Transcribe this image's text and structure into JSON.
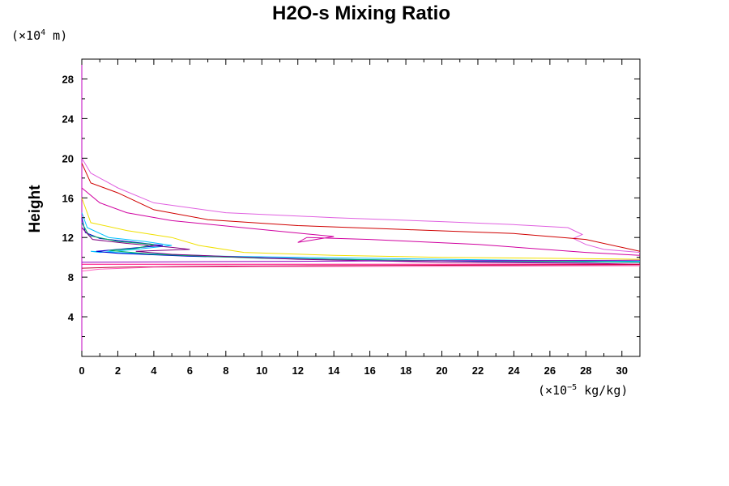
{
  "chart_data": {
    "type": "line",
    "title": "H2O-s Mixing Ratio",
    "ylabel": "Height",
    "xlabel": "",
    "y_unit": {
      "prefix": "(×10",
      "exp": "4",
      "suffix": " m)"
    },
    "x_unit": {
      "prefix": "(×10",
      "exp": "−5",
      "suffix": " kg/kg)"
    },
    "xlim": [
      0,
      31
    ],
    "ylim": [
      0,
      30
    ],
    "x_ticks": [
      0,
      2,
      4,
      6,
      8,
      10,
      12,
      14,
      16,
      18,
      20,
      22,
      24,
      26,
      28,
      30
    ],
    "y_ticks": [
      4,
      8,
      12,
      16,
      20,
      24,
      28
    ],
    "grid": false,
    "series": [
      {
        "color": "#e060e0",
        "points": [
          [
            0,
            20
          ],
          [
            0.5,
            18.5
          ],
          [
            2,
            17
          ],
          [
            4,
            15.5
          ],
          [
            8,
            14.5
          ],
          [
            14,
            14
          ],
          [
            20,
            13.6
          ],
          [
            24,
            13.3
          ],
          [
            27,
            13
          ],
          [
            27.8,
            12.3
          ],
          [
            27.3,
            11.9
          ],
          [
            28,
            11.3
          ],
          [
            29,
            10.8
          ],
          [
            31,
            10.5
          ]
        ]
      },
      {
        "color": "#d00000",
        "points": [
          [
            0,
            19.5
          ],
          [
            0.5,
            17.5
          ],
          [
            2,
            16.5
          ],
          [
            4,
            14.8
          ],
          [
            7,
            13.8
          ],
          [
            12,
            13.2
          ],
          [
            18,
            12.8
          ],
          [
            24,
            12.4
          ],
          [
            28,
            11.8
          ],
          [
            30,
            11
          ],
          [
            31,
            10.6
          ]
        ]
      },
      {
        "color": "#d000a0",
        "points": [
          [
            0,
            17
          ],
          [
            1,
            15.5
          ],
          [
            2.5,
            14.5
          ],
          [
            5,
            13.7
          ],
          [
            10,
            12.8
          ],
          [
            14,
            12.1
          ],
          [
            12,
            11.5
          ],
          [
            12.5,
            12
          ],
          [
            16,
            11.8
          ],
          [
            22,
            11.3
          ],
          [
            28,
            10.5
          ],
          [
            31,
            10.2
          ]
        ]
      },
      {
        "color": "#f0e000",
        "points": [
          [
            0,
            16
          ],
          [
            0.5,
            13.5
          ],
          [
            2.5,
            12.7
          ],
          [
            5,
            12
          ],
          [
            6.5,
            11.2
          ],
          [
            9,
            10.5
          ],
          [
            14,
            10.2
          ],
          [
            20,
            10
          ],
          [
            26,
            9.9
          ],
          [
            31,
            9.8
          ]
        ]
      },
      {
        "color": "#00c0ff",
        "points": [
          [
            0,
            14.5
          ],
          [
            0.3,
            13
          ],
          [
            1.5,
            12
          ],
          [
            3.5,
            11.6
          ],
          [
            5,
            11.2
          ],
          [
            3,
            10.8
          ],
          [
            1,
            10.5
          ],
          [
            0.5,
            10.6
          ],
          [
            3,
            10.4
          ],
          [
            8,
            10.1
          ],
          [
            16,
            9.9
          ],
          [
            24,
            9.7
          ],
          [
            31,
            9.6
          ]
        ]
      },
      {
        "color": "#0000d0",
        "points": [
          [
            0,
            14
          ],
          [
            0.2,
            12.5
          ],
          [
            1,
            11.9
          ],
          [
            3,
            11.5
          ],
          [
            4.5,
            11.2
          ],
          [
            2,
            10.8
          ],
          [
            0.8,
            10.6
          ],
          [
            2,
            10.4
          ],
          [
            6,
            10.1
          ],
          [
            14,
            9.8
          ],
          [
            22,
            9.6
          ],
          [
            31,
            9.5
          ]
        ]
      },
      {
        "color": "#00b060",
        "points": [
          [
            0,
            13.5
          ],
          [
            0.4,
            12.2
          ],
          [
            2,
            11.6
          ],
          [
            4,
            11.3
          ],
          [
            3,
            10.9
          ],
          [
            1.5,
            10.7
          ],
          [
            4,
            10.3
          ],
          [
            10,
            9.9
          ],
          [
            18,
            9.7
          ],
          [
            26,
            9.6
          ],
          [
            31,
            9.5
          ]
        ]
      },
      {
        "color": "#800080",
        "points": [
          [
            0,
            13
          ],
          [
            0.6,
            11.8
          ],
          [
            2.5,
            11.4
          ],
          [
            5,
            11
          ],
          [
            6,
            10.8
          ],
          [
            3,
            10.6
          ],
          [
            5,
            10.3
          ],
          [
            12,
            9.8
          ],
          [
            20,
            9.5
          ],
          [
            28,
            9.4
          ],
          [
            31,
            9.3
          ]
        ]
      },
      {
        "color": "#ff0080",
        "points": [
          [
            0,
            9.3
          ],
          [
            4,
            9.3
          ],
          [
            10,
            9.3
          ],
          [
            16,
            9.3
          ],
          [
            22,
            9.3
          ],
          [
            28,
            9.3
          ],
          [
            31,
            9.3
          ]
        ]
      },
      {
        "color": "#c00030",
        "points": [
          [
            0,
            8.9
          ],
          [
            2,
            9.0
          ],
          [
            6,
            9.1
          ],
          [
            12,
            9.15
          ],
          [
            20,
            9.2
          ],
          [
            31,
            9.25
          ]
        ]
      },
      {
        "color": "#9000c0",
        "points": [
          [
            0,
            9.5
          ],
          [
            5,
            9.55
          ],
          [
            12,
            9.6
          ],
          [
            20,
            9.65
          ],
          [
            31,
            9.7
          ]
        ]
      },
      {
        "color": "#ff60c0",
        "points": [
          [
            0,
            8.6
          ],
          [
            1,
            8.8
          ],
          [
            4,
            9.0
          ],
          [
            10,
            9.05
          ],
          [
            20,
            9.1
          ],
          [
            31,
            9.15
          ]
        ]
      }
    ]
  }
}
